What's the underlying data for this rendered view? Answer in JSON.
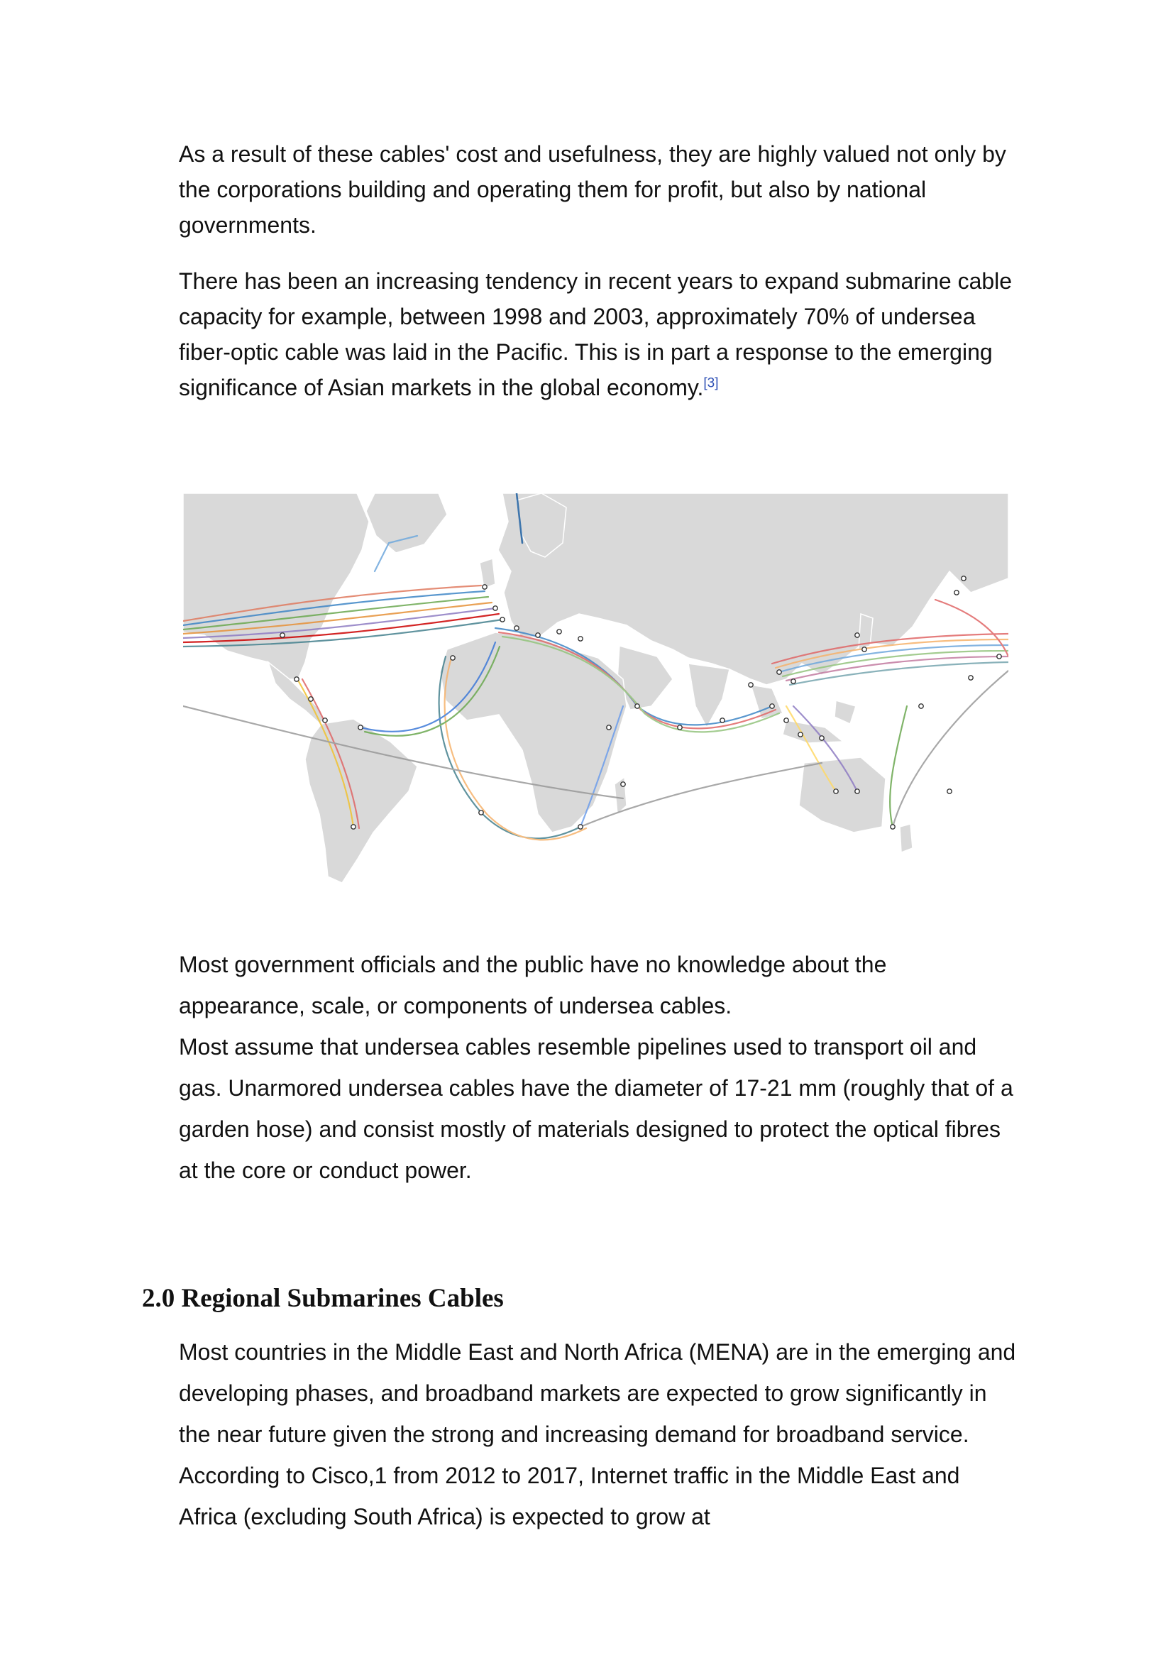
{
  "paragraphs": {
    "p1": "As a result of these cables' cost and usefulness, they are highly valued not only by the corporations building and operating them for profit, but also by national governments.",
    "p2": "There has been an increasing tendency in recent years to expand submarine cable capacity for example, between 1998 and 2003, approximately 70% of undersea fiber-optic cable was laid in the Pacific. This is in part a response to the emerging significance of Asian markets in the global economy.",
    "p2_ref": "[3]",
    "p3a": "Most government officials and the public have no knowledge about the appearance, scale, or components of undersea cables.",
    "p3b": "Most assume that undersea cables resemble pipelines used to transport oil and gas. Unarmored undersea cables have the diameter of 17-21 mm (roughly that of a garden hose) and consist mostly of materials designed to protect the optical fibres at the core or conduct power.",
    "p4": "Most countries in the Middle East and North Africa (MENA) are in the emerging and developing phases, and broadband markets are expected to grow significantly in the near future given the strong and increasing demand for broadband service. According to Cisco,1 from 2012 to 2017, Internet traffic in the Middle East and Africa (excluding South Africa) is expected to grow at"
  },
  "section": {
    "heading": "2.0 Regional Submarines Cables"
  },
  "map": {
    "icon": "world-submarine-cable-map",
    "colors": {
      "land": "#d9d9d9",
      "border": "#ffffff",
      "sea": "#ffffff"
    }
  }
}
